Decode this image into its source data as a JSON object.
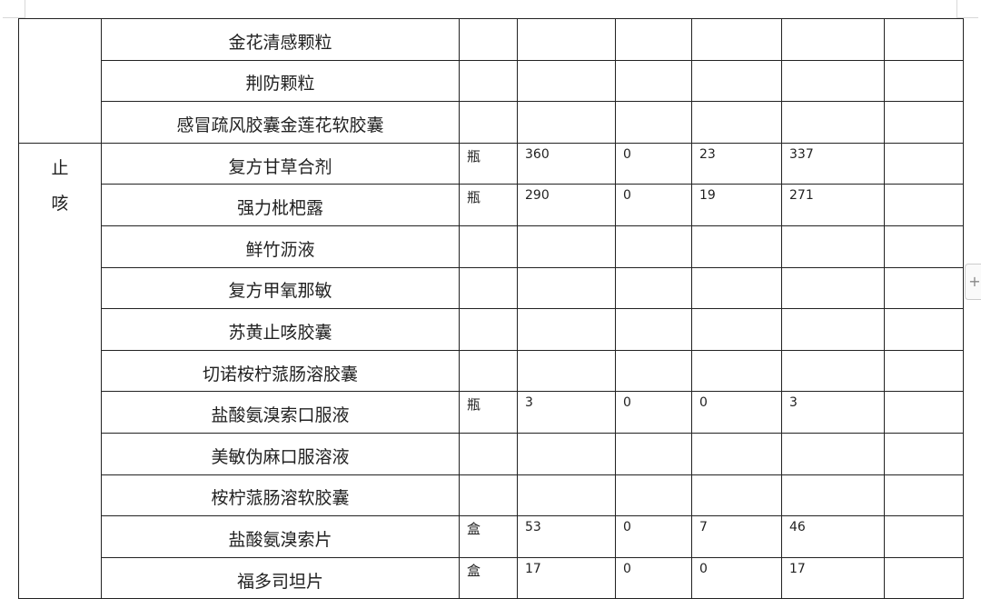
{
  "table": {
    "rows": [
      {
        "category": "",
        "name": "金花清感颗粒",
        "unit": "",
        "c1": "",
        "c2": "",
        "c3": "",
        "c4": "",
        "c5": ""
      },
      {
        "name": "荆防颗粒",
        "unit": "",
        "c1": "",
        "c2": "",
        "c3": "",
        "c4": "",
        "c5": ""
      },
      {
        "name": "感冒疏风胶囊金莲花软胶囊",
        "unit": "",
        "c1": "",
        "c2": "",
        "c3": "",
        "c4": "",
        "c5": ""
      },
      {
        "category_line1": "止",
        "category_line2": "咳",
        "name": "复方甘草合剂",
        "unit": "瓶",
        "c1": "360",
        "c2": "0",
        "c3": "23",
        "c4": "337",
        "c5": ""
      },
      {
        "name": "强力枇杷露",
        "unit": "瓶",
        "c1": "290",
        "c2": "0",
        "c3": "19",
        "c4": "271",
        "c5": ""
      },
      {
        "name": "鲜竹沥液",
        "unit": "",
        "c1": "",
        "c2": "",
        "c3": "",
        "c4": "",
        "c5": ""
      },
      {
        "name": "复方甲氧那敏",
        "unit": "",
        "c1": "",
        "c2": "",
        "c3": "",
        "c4": "",
        "c5": ""
      },
      {
        "name": "苏黄止咳胶囊",
        "unit": "",
        "c1": "",
        "c2": "",
        "c3": "",
        "c4": "",
        "c5": ""
      },
      {
        "name": "切诺桉柠蒎肠溶胶囊",
        "unit": "",
        "c1": "",
        "c2": "",
        "c3": "",
        "c4": "",
        "c5": ""
      },
      {
        "name": "盐酸氨溴索口服液",
        "unit": "瓶",
        "c1": "3",
        "c2": "0",
        "c3": "0",
        "c4": "3",
        "c5": ""
      },
      {
        "name": "美敏伪麻口服溶液",
        "unit": "",
        "c1": "",
        "c2": "",
        "c3": "",
        "c4": "",
        "c5": ""
      },
      {
        "name": "桉柠蒎肠溶软胶囊",
        "unit": "",
        "c1": "",
        "c2": "",
        "c3": "",
        "c4": "",
        "c5": ""
      },
      {
        "name": "盐酸氨溴索片",
        "unit": "盒",
        "c1": "53",
        "c2": "0",
        "c3": "7",
        "c4": "46",
        "c5": ""
      },
      {
        "name": "福多司坦片",
        "unit": "盒",
        "c1": "17",
        "c2": "0",
        "c3": "0",
        "c4": "17",
        "c5": ""
      }
    ]
  },
  "add_button": {
    "label": "+"
  }
}
